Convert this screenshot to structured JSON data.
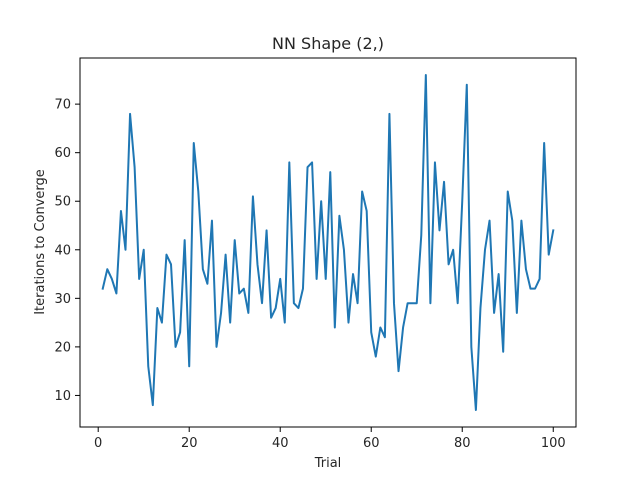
{
  "chart_data": {
    "type": "line",
    "title": "NN Shape (2,)",
    "xlabel": "Trial",
    "ylabel": "Iterations to Converge",
    "xlim": [
      -4,
      105
    ],
    "ylim": [
      3.5,
      79.5
    ],
    "xticks": [
      0,
      20,
      40,
      60,
      80,
      100
    ],
    "yticks": [
      10,
      20,
      30,
      40,
      50,
      60,
      70
    ],
    "grid": false,
    "series": [
      {
        "color": "#1f77b4",
        "x": [
          1,
          2,
          3,
          4,
          5,
          6,
          7,
          8,
          9,
          10,
          11,
          12,
          13,
          14,
          15,
          16,
          17,
          18,
          19,
          20,
          21,
          22,
          23,
          24,
          25,
          26,
          27,
          28,
          29,
          30,
          31,
          32,
          33,
          34,
          35,
          36,
          37,
          38,
          39,
          40,
          41,
          42,
          43,
          44,
          45,
          46,
          47,
          48,
          49,
          50,
          51,
          52,
          53,
          54,
          55,
          56,
          57,
          58,
          59,
          60,
          61,
          62,
          63,
          64,
          65,
          66,
          67,
          68,
          69,
          70,
          71,
          72,
          73,
          74,
          75,
          76,
          77,
          78,
          79,
          80,
          81,
          82,
          83,
          84,
          85,
          86,
          87,
          88,
          89,
          90,
          91,
          92,
          93,
          94,
          95,
          96,
          97,
          98,
          99,
          100
        ],
        "values": [
          32,
          36,
          34,
          31,
          48,
          40,
          68,
          57,
          34,
          40,
          16,
          8,
          28,
          25,
          39,
          37,
          20,
          23,
          42,
          16,
          62,
          52,
          36,
          33,
          46,
          20,
          27,
          39,
          25,
          42,
          31,
          32,
          27,
          51,
          37,
          29,
          44,
          26,
          28,
          34,
          25,
          58,
          29,
          28,
          32,
          57,
          58,
          34,
          50,
          34,
          56,
          24,
          47,
          40,
          25,
          35,
          29,
          52,
          48,
          23,
          18,
          24,
          22,
          68,
          29,
          15,
          24,
          29,
          29,
          29,
          43,
          76,
          29,
          58,
          44,
          54,
          37,
          40,
          29,
          50,
          74,
          20,
          7,
          28,
          40,
          46,
          27,
          35,
          19,
          52,
          46,
          27,
          46,
          36,
          32,
          32,
          34,
          62,
          39,
          44
        ]
      }
    ]
  }
}
